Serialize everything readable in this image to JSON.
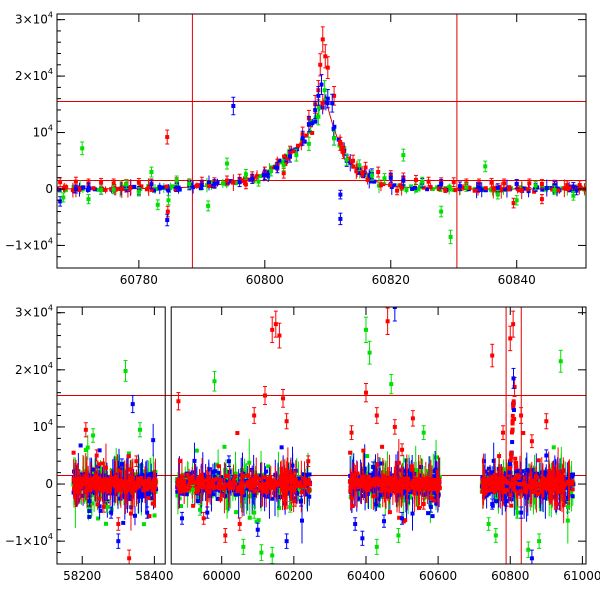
{
  "chart_data": [
    {
      "type": "scatter",
      "panel": "top",
      "title": "",
      "xlabel": "",
      "ylabel": "",
      "xlim": [
        60767,
        60851
      ],
      "ylim": [
        -14000,
        31000
      ],
      "x_ticks": [
        60780,
        60800,
        60820,
        60840
      ],
      "y_ticks": [
        {
          "value": -10000,
          "label": "−1×10",
          "exp": "4"
        },
        {
          "value": 0,
          "label": "0",
          "exp": ""
        },
        {
          "value": 10000,
          "label": "10",
          "exp": "4"
        },
        {
          "value": 20000,
          "label": "2×10",
          "exp": "4"
        },
        {
          "value": 30000,
          "label": "3×10",
          "exp": "4"
        }
      ],
      "reference_lines": {
        "horizontal": [
          15500,
          1500
        ],
        "vertical": [
          60788.5,
          60830.5
        ]
      },
      "model": {
        "t0": 60809.6,
        "peak": 16500,
        "tau_rise": 5.5,
        "tau_fall": 3.2,
        "baseline": 0
      },
      "series": [
        {
          "name": "red",
          "color": "#ff0000",
          "points": [
            [
              60767.5,
              1200
            ],
            [
              60770,
              1300
            ],
            [
              60772,
              1000
            ],
            [
              60774,
              1100
            ],
            [
              60776,
              1000
            ],
            [
              60778,
              900
            ],
            [
              60780,
              1100
            ],
            [
              60782,
              1000
            ],
            [
              60784.5,
              9200
            ],
            [
              60784.6,
              -4000
            ],
            [
              60786,
              1200
            ],
            [
              60788,
              1000
            ],
            [
              60790,
              1300
            ],
            [
              60792,
              1200
            ],
            [
              60794,
              1500
            ],
            [
              60796,
              1800
            ],
            [
              60798,
              2200
            ],
            [
              60800,
              3000
            ],
            [
              60802,
              4300
            ],
            [
              60804,
              6500
            ],
            [
              60806,
              9700
            ],
            [
              60807,
              12500
            ],
            [
              60808,
              15000
            ],
            [
              60808.5,
              17500
            ],
            [
              60808.8,
              22000
            ],
            [
              60809.2,
              26500
            ],
            [
              60809.6,
              23500
            ],
            [
              60810,
              21500
            ],
            [
              60811,
              16500
            ],
            [
              60812,
              8000
            ],
            [
              60812.5,
              6500
            ],
            [
              60814,
              5000
            ],
            [
              60816,
              3800
            ],
            [
              60818,
              3000
            ],
            [
              60820,
              2400
            ],
            [
              60822,
              2000
            ],
            [
              60824,
              1600
            ],
            [
              60826,
              1300
            ],
            [
              60828,
              1200
            ],
            [
              60830,
              1200
            ],
            [
              60832,
              1000
            ],
            [
              60834,
              1000
            ],
            [
              60836,
              1100
            ],
            [
              60838,
              1000
            ],
            [
              60840,
              900
            ],
            [
              60842,
              1000
            ],
            [
              60844,
              900
            ],
            [
              60846,
              800
            ],
            [
              60848,
              700
            ],
            [
              60850,
              700
            ],
            [
              60821,
              -300
            ],
            [
              60839.5,
              -2500
            ],
            [
              60844,
              -1800
            ],
            [
              60797,
              800
            ],
            [
              60803,
              2800
            ]
          ]
        },
        {
          "name": "blue",
          "color": "#0000ff",
          "points": [
            [
              60767.5,
              -2200
            ],
            [
              60770,
              0
            ],
            [
              60772,
              300
            ],
            [
              60774,
              -200
            ],
            [
              60776,
              -100
            ],
            [
              60778,
              200
            ],
            [
              60780,
              -300
            ],
            [
              60782,
              800
            ],
            [
              60784.5,
              -5500
            ],
            [
              60786,
              300
            ],
            [
              60788,
              600
            ],
            [
              60790,
              700
            ],
            [
              60792,
              900
            ],
            [
              60795,
              14700
            ],
            [
              60796,
              1200
            ],
            [
              60798,
              1800
            ],
            [
              60800,
              2500
            ],
            [
              60802,
              3800
            ],
            [
              60804,
              5800
            ],
            [
              60806,
              9000
            ],
            [
              60807,
              11500
            ],
            [
              60808,
              14000
            ],
            [
              60808.5,
              16500
            ],
            [
              60809,
              18500
            ],
            [
              60810,
              16000
            ],
            [
              60810.7,
              15200
            ],
            [
              60811,
              9000
            ],
            [
              60812,
              -1000
            ],
            [
              60812,
              -5300
            ],
            [
              60813,
              5000
            ],
            [
              60815,
              3500
            ],
            [
              60817,
              2700
            ],
            [
              60820,
              2000
            ],
            [
              60822,
              1500
            ],
            [
              60825,
              1100
            ],
            [
              60828,
              900
            ],
            [
              60831,
              500
            ],
            [
              60834,
              300
            ],
            [
              60837,
              200
            ],
            [
              60840,
              900
            ],
            [
              60843,
              300
            ],
            [
              60846,
              600
            ],
            [
              60849,
              400
            ],
            [
              60849.5,
              -300
            ]
          ]
        },
        {
          "name": "green",
          "color": "#00e000",
          "points": [
            [
              60768,
              -1500
            ],
            [
              60771,
              7200
            ],
            [
              60772,
              -1800
            ],
            [
              60774,
              -200
            ],
            [
              60776,
              -100
            ],
            [
              60778,
              800
            ],
            [
              60780,
              -500
            ],
            [
              60782,
              3000
            ],
            [
              60783,
              -2800
            ],
            [
              60784.7,
              -2000
            ],
            [
              60786,
              1500
            ],
            [
              60788,
              900
            ],
            [
              60791,
              -3000
            ],
            [
              60794,
              4500
            ],
            [
              60797,
              2600
            ],
            [
              60799,
              1300
            ],
            [
              60801,
              3200
            ],
            [
              60803,
              4200
            ],
            [
              60805,
              6000
            ],
            [
              60807,
              8000
            ],
            [
              60808.5,
              12800
            ],
            [
              60809.5,
              17500
            ],
            [
              60811,
              9000
            ],
            [
              60813,
              5200
            ],
            [
              60815,
              4200
            ],
            [
              60817,
              2400
            ],
            [
              60819,
              1900
            ],
            [
              60822,
              6000
            ],
            [
              60825,
              1300
            ],
            [
              60828,
              -4000
            ],
            [
              60829.5,
              -8500
            ],
            [
              60832,
              300
            ],
            [
              60835,
              4000
            ],
            [
              60837,
              -1000
            ],
            [
              60840,
              -2000
            ],
            [
              60843,
              600
            ],
            [
              60846,
              -200
            ],
            [
              60849,
              -1200
            ]
          ]
        }
      ]
    },
    {
      "type": "scatter",
      "panel": "bottom",
      "title": "",
      "xlabel": "",
      "ylabel": "",
      "xlim": [
        58130,
        61010
      ],
      "ylim": [
        -14000,
        31000
      ],
      "x_ticks": [
        {
          "value": 58200,
          "label": "58200"
        },
        {
          "value": 58400,
          "label": "58400"
        },
        {
          "value": 60000,
          "label": "60000"
        },
        {
          "value": 60200,
          "label": "60200"
        },
        {
          "value": 60400,
          "label": "60400"
        },
        {
          "value": 60600,
          "label": "60600"
        },
        {
          "value": 60800,
          "label": "60800"
        },
        {
          "value": 61000,
          "label": "61000"
        }
      ],
      "axis_break": {
        "from": 58430,
        "to": 59860
      },
      "y_ticks": [
        {
          "value": -10000,
          "label": "−1×10",
          "exp": "4"
        },
        {
          "value": 0,
          "label": "0",
          "exp": ""
        },
        {
          "value": 10000,
          "label": "10",
          "exp": "4"
        },
        {
          "value": 20000,
          "label": "2×10",
          "exp": "4"
        },
        {
          "value": 30000,
          "label": "3×10",
          "exp": "4"
        }
      ],
      "reference_lines": {
        "horizontal": [
          15500,
          1500
        ],
        "vertical": [
          60788.5,
          60830.5
        ]
      },
      "observing_seasons": [
        [
          58175,
          58405
        ],
        [
          59875,
          60245
        ],
        [
          60355,
          60605
        ],
        [
          60720,
          60975
        ]
      ],
      "series": [
        {
          "name": "red",
          "color": "#ff0000",
          "points": [
            [
              58210,
              9500
            ],
            [
              58240,
              5000
            ],
            [
              58260,
              -4000
            ],
            [
              58300,
              -7000
            ],
            [
              58330,
              -13000
            ],
            [
              58350,
              4000
            ],
            [
              59880,
              14500
            ],
            [
              59950,
              -6000
            ],
            [
              60010,
              -9000
            ],
            [
              60050,
              -7000
            ],
            [
              60090,
              12000
            ],
            [
              60120,
              15500
            ],
            [
              60140,
              27000
            ],
            [
              60150,
              28000
            ],
            [
              60160,
              26000
            ],
            [
              60170,
              15000
            ],
            [
              60180,
              11000
            ],
            [
              60200,
              -3000
            ],
            [
              60240,
              4000
            ],
            [
              60360,
              9000
            ],
            [
              60400,
              16000
            ],
            [
              60430,
              12000
            ],
            [
              60460,
              28500
            ],
            [
              60480,
              10000
            ],
            [
              60500,
              6000
            ],
            [
              60530,
              11500
            ],
            [
              60560,
              -3500
            ],
            [
              60750,
              22500
            ],
            [
              60780,
              9000
            ],
            [
              60800,
              25500
            ],
            [
              60808,
              28000
            ],
            [
              60812,
              17000
            ],
            [
              60830,
              12000
            ],
            [
              60860,
              7500
            ],
            [
              60900,
              11000
            ],
            [
              60930,
              -3500
            ]
          ]
        },
        {
          "name": "blue",
          "color": "#0000ff",
          "points": [
            [
              58220,
              -3000
            ],
            [
              58280,
              -5000
            ],
            [
              58300,
              -10000
            ],
            [
              58310,
              3500
            ],
            [
              58340,
              14000
            ],
            [
              58380,
              -5000
            ],
            [
              59890,
              -6000
            ],
            [
              59960,
              -5000
            ],
            [
              60020,
              4000
            ],
            [
              60100,
              -8000
            ],
            [
              60180,
              -10000
            ],
            [
              60220,
              -3000
            ],
            [
              60370,
              -7000
            ],
            [
              60390,
              -9500
            ],
            [
              60420,
              3000
            ],
            [
              60450,
              -6500
            ],
            [
              60480,
              31000
            ],
            [
              60500,
              -6000
            ],
            [
              60580,
              -4000
            ],
            [
              60750,
              -3500
            ],
            [
              60790,
              -3000
            ],
            [
              60809,
              18500
            ],
            [
              60830,
              -5000
            ],
            [
              60860,
              -13000
            ],
            [
              60900,
              5000
            ]
          ]
        },
        {
          "name": "green",
          "color": "#00e000",
          "points": [
            [
              58230,
              8500
            ],
            [
              58270,
              -4000
            ],
            [
              58320,
              19800
            ],
            [
              58360,
              9500
            ],
            [
              59920,
              -1000
            ],
            [
              59940,
              -4500
            ],
            [
              59980,
              18000
            ],
            [
              60060,
              -11000
            ],
            [
              60090,
              -5000
            ],
            [
              60110,
              -12000
            ],
            [
              60140,
              -12500
            ],
            [
              60190,
              -4000
            ],
            [
              60400,
              27000
            ],
            [
              60410,
              23000
            ],
            [
              60430,
              -11000
            ],
            [
              60470,
              17500
            ],
            [
              60490,
              -9000
            ],
            [
              60560,
              9000
            ],
            [
              60740,
              -7000
            ],
            [
              60760,
              -9000
            ],
            [
              60820,
              -5000
            ],
            [
              60850,
              -11500
            ],
            [
              60880,
              -10000
            ],
            [
              60940,
              21500
            ],
            [
              60960,
              -4000
            ]
          ]
        }
      ]
    }
  ]
}
